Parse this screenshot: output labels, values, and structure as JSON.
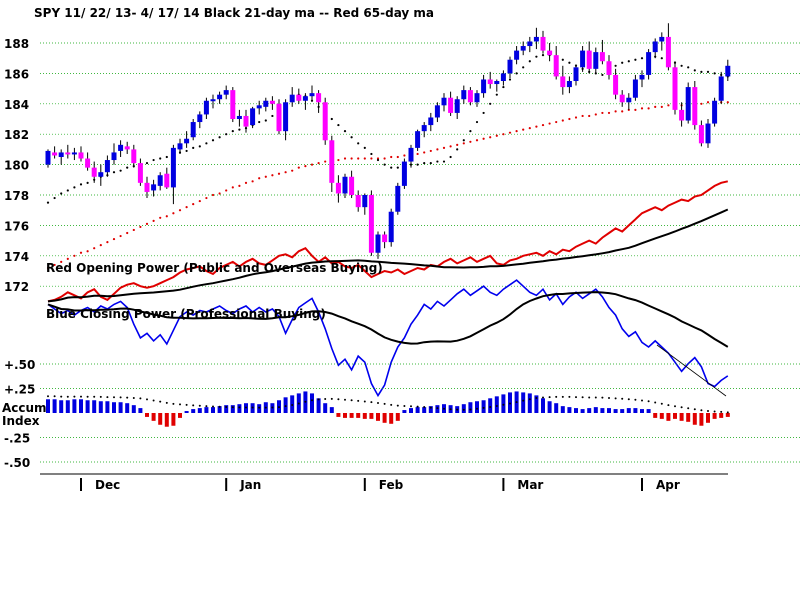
{
  "chart_data": {
    "type": "candlestick-with-indicators",
    "title": "SPY   11/ 22/ 13- 4/ 17/ 14    Black 21-day ma --   Red 65-day ma",
    "months": [
      "Dec",
      "Jan",
      "Feb",
      "Mar",
      "Apr"
    ],
    "price_axis": {
      "ticks": [
        172,
        174,
        176,
        178,
        180,
        182,
        184,
        186,
        188
      ],
      "ylim": [
        171.3,
        189.2
      ]
    },
    "accum_axis": {
      "ticks": [
        "+.50",
        "+.25",
        "-.25",
        "-.50"
      ],
      "ylim": [
        -0.55,
        0.55
      ],
      "label_lines": [
        "Accum",
        "Index"
      ]
    },
    "annotations": {
      "red_opening_power": "Red Opening Power (Public and Overseas Buying)",
      "blue_closing_power": "Blue Closing Power (Professional Buying)"
    },
    "candles_ohlc": [
      [
        180.0,
        181.0,
        179.8,
        180.9
      ],
      [
        180.8,
        181.2,
        180.4,
        180.6
      ],
      [
        180.5,
        181.0,
        180.0,
        180.8
      ],
      [
        180.8,
        181.3,
        180.4,
        180.7
      ],
      [
        180.7,
        181.1,
        180.3,
        180.8
      ],
      [
        180.8,
        181.2,
        180.2,
        180.4
      ],
      [
        180.4,
        180.8,
        179.6,
        179.8
      ],
      [
        179.8,
        180.2,
        178.8,
        179.2
      ],
      [
        179.2,
        180.0,
        178.6,
        179.5
      ],
      [
        179.5,
        180.6,
        179.2,
        180.3
      ],
      [
        180.3,
        181.4,
        180.0,
        180.8
      ],
      [
        180.9,
        181.6,
        180.5,
        181.3
      ],
      [
        181.2,
        181.5,
        180.7,
        181.0
      ],
      [
        181.0,
        181.3,
        179.8,
        180.1
      ],
      [
        180.1,
        180.4,
        178.6,
        178.8
      ],
      [
        178.8,
        179.2,
        177.8,
        178.2
      ],
      [
        178.3,
        179.0,
        177.9,
        178.7
      ],
      [
        178.6,
        179.5,
        178.3,
        179.3
      ],
      [
        179.4,
        179.8,
        178.4,
        178.5
      ],
      [
        178.5,
        181.3,
        177.4,
        181.1
      ],
      [
        181.0,
        181.7,
        180.7,
        181.4
      ],
      [
        181.4,
        182.2,
        181.1,
        181.7
      ],
      [
        181.8,
        183.0,
        181.6,
        182.8
      ],
      [
        182.8,
        183.5,
        182.4,
        183.3
      ],
      [
        183.3,
        184.4,
        183.0,
        184.2
      ],
      [
        184.2,
        184.6,
        183.7,
        184.3
      ],
      [
        184.3,
        184.8,
        184.0,
        184.6
      ],
      [
        184.6,
        185.2,
        184.3,
        184.9
      ],
      [
        184.9,
        185.1,
        182.8,
        183.0
      ],
      [
        183.0,
        183.6,
        182.5,
        183.2
      ],
      [
        183.2,
        183.6,
        182.1,
        182.5
      ],
      [
        182.6,
        183.8,
        182.4,
        183.7
      ],
      [
        183.7,
        184.2,
        183.3,
        183.9
      ],
      [
        183.8,
        184.4,
        183.5,
        184.2
      ],
      [
        184.2,
        184.5,
        183.6,
        184.0
      ],
      [
        184.0,
        184.3,
        182.0,
        182.2
      ],
      [
        182.2,
        184.3,
        181.6,
        184.1
      ],
      [
        184.1,
        185.1,
        183.8,
        184.6
      ],
      [
        184.6,
        185.0,
        184.0,
        184.2
      ],
      [
        184.2,
        184.7,
        183.6,
        184.5
      ],
      [
        184.5,
        185.2,
        184.2,
        184.7
      ],
      [
        184.7,
        184.9,
        183.4,
        184.1
      ],
      [
        184.1,
        184.4,
        181.3,
        181.6
      ],
      [
        181.6,
        181.9,
        178.2,
        178.8
      ],
      [
        178.8,
        179.3,
        177.5,
        178.1
      ],
      [
        178.1,
        179.4,
        177.8,
        179.2
      ],
      [
        179.2,
        179.6,
        177.8,
        178.0
      ],
      [
        178.0,
        178.3,
        176.9,
        177.2
      ],
      [
        177.2,
        178.1,
        176.7,
        178.0
      ],
      [
        178.0,
        178.3,
        174.0,
        174.2
      ],
      [
        174.2,
        175.6,
        173.8,
        175.4
      ],
      [
        175.4,
        175.6,
        174.5,
        174.9
      ],
      [
        174.9,
        177.1,
        174.6,
        176.9
      ],
      [
        176.9,
        178.8,
        176.7,
        178.6
      ],
      [
        178.6,
        180.4,
        178.4,
        180.2
      ],
      [
        180.2,
        181.3,
        179.8,
        181.1
      ],
      [
        181.1,
        182.3,
        180.9,
        182.2
      ],
      [
        182.2,
        182.8,
        181.8,
        182.6
      ],
      [
        182.6,
        183.4,
        182.2,
        183.1
      ],
      [
        183.1,
        184.1,
        182.8,
        183.9
      ],
      [
        183.9,
        184.7,
        183.5,
        184.4
      ],
      [
        184.4,
        184.8,
        183.2,
        183.4
      ],
      [
        183.4,
        184.5,
        183.0,
        184.3
      ],
      [
        184.3,
        185.2,
        184.0,
        184.9
      ],
      [
        184.9,
        185.1,
        183.9,
        184.1
      ],
      [
        184.1,
        184.9,
        183.8,
        184.7
      ],
      [
        184.7,
        185.9,
        184.4,
        185.6
      ],
      [
        185.6,
        186.1,
        185.0,
        185.3
      ],
      [
        185.3,
        185.6,
        184.8,
        185.5
      ],
      [
        185.5,
        186.2,
        185.2,
        186.0
      ],
      [
        186.0,
        187.1,
        185.7,
        186.9
      ],
      [
        186.9,
        187.8,
        186.6,
        187.5
      ],
      [
        187.5,
        188.1,
        187.2,
        187.8
      ],
      [
        187.8,
        188.4,
        187.4,
        188.1
      ],
      [
        188.1,
        189.0,
        187.6,
        188.4
      ],
      [
        188.4,
        188.8,
        187.3,
        187.5
      ],
      [
        187.5,
        188.0,
        186.8,
        187.2
      ],
      [
        187.2,
        187.8,
        185.6,
        185.8
      ],
      [
        185.8,
        186.5,
        184.6,
        185.1
      ],
      [
        185.1,
        185.8,
        184.7,
        185.5
      ],
      [
        185.5,
        186.6,
        185.2,
        186.4
      ],
      [
        186.4,
        187.8,
        186.1,
        187.5
      ],
      [
        187.5,
        188.1,
        186.0,
        186.3
      ],
      [
        186.3,
        187.7,
        186.0,
        187.4
      ],
      [
        187.4,
        188.2,
        186.6,
        186.8
      ],
      [
        186.8,
        187.2,
        185.6,
        185.9
      ],
      [
        185.9,
        186.3,
        184.3,
        184.6
      ],
      [
        184.6,
        184.9,
        183.8,
        184.1
      ],
      [
        184.1,
        184.7,
        183.6,
        184.4
      ],
      [
        184.4,
        185.9,
        184.2,
        185.6
      ],
      [
        185.6,
        186.2,
        185.1,
        185.9
      ],
      [
        185.9,
        187.6,
        185.6,
        187.4
      ],
      [
        187.4,
        188.3,
        187.0,
        188.1
      ],
      [
        188.1,
        188.7,
        187.5,
        188.4
      ],
      [
        188.4,
        189.3,
        186.2,
        186.4
      ],
      [
        186.4,
        186.8,
        183.3,
        183.6
      ],
      [
        183.6,
        184.1,
        182.5,
        182.9
      ],
      [
        182.9,
        185.4,
        182.7,
        185.1
      ],
      [
        185.1,
        185.5,
        182.3,
        182.6
      ],
      [
        182.6,
        182.9,
        181.2,
        181.4
      ],
      [
        181.4,
        183.0,
        181.1,
        182.7
      ],
      [
        182.7,
        184.4,
        182.5,
        184.2
      ],
      [
        184.2,
        186.1,
        184.0,
        185.8
      ],
      [
        185.8,
        186.9,
        185.5,
        186.5
      ]
    ],
    "series": [
      {
        "name": "Black 21-day ma",
        "values": [
          177.5,
          177.8,
          178.1,
          178.3,
          178.5,
          178.7,
          178.8,
          179.0,
          179.2,
          179.3,
          179.5,
          179.6,
          179.8,
          179.9,
          180.0,
          180.1,
          180.3,
          180.4,
          180.5,
          180.6,
          180.8,
          180.9,
          181.1,
          181.2,
          181.4,
          181.6,
          181.8,
          182.0,
          182.2,
          182.3,
          182.4,
          182.6,
          182.8,
          182.9,
          183.2,
          183.5,
          183.9,
          184.3,
          184.6,
          184.5,
          184.2,
          183.8,
          183.4,
          183.0,
          182.6,
          182.2,
          181.8,
          181.4,
          181.1,
          180.7,
          180.3,
          180.0,
          179.8,
          179.8,
          179.9,
          180.0,
          180.0,
          180.1,
          180.1,
          180.2,
          180.2,
          180.5,
          181.0,
          181.6,
          182.2,
          182.8,
          183.4,
          184.0,
          184.6,
          185.1,
          185.6,
          186.0,
          186.4,
          186.8,
          187.1,
          187.2,
          187.2,
          187.1,
          186.9,
          186.7,
          186.5,
          186.3,
          186.1,
          186.0,
          185.9,
          186.2,
          186.5,
          186.7,
          186.8,
          186.9,
          187.0,
          187.1,
          187.1,
          187.0,
          186.9,
          186.7,
          186.5,
          186.4,
          186.2,
          186.1,
          186.1,
          186.0,
          185.9,
          185.8
        ]
      },
      {
        "name": "Red 65-day ma",
        "values": [
          173.2,
          173.4,
          173.6,
          173.8,
          174.0,
          174.2,
          174.3,
          174.5,
          174.7,
          174.9,
          175.1,
          175.3,
          175.5,
          175.7,
          175.9,
          176.1,
          176.3,
          176.5,
          176.6,
          176.8,
          177.0,
          177.2,
          177.4,
          177.6,
          177.8,
          178.0,
          178.1,
          178.3,
          178.5,
          178.6,
          178.8,
          178.9,
          179.1,
          179.2,
          179.3,
          179.4,
          179.5,
          179.6,
          179.8,
          179.9,
          180.0,
          180.1,
          180.2,
          180.3,
          180.3,
          180.4,
          180.4,
          180.4,
          180.4,
          180.4,
          180.4,
          180.4,
          180.5,
          180.5,
          180.6,
          180.6,
          180.7,
          180.8,
          180.9,
          181.0,
          181.1,
          181.2,
          181.3,
          181.4,
          181.5,
          181.6,
          181.7,
          181.8,
          181.9,
          182.0,
          182.1,
          182.2,
          182.3,
          182.4,
          182.5,
          182.6,
          182.7,
          182.8,
          182.9,
          183.0,
          183.1,
          183.2,
          183.2,
          183.3,
          183.4,
          183.4,
          183.5,
          183.5,
          183.6,
          183.6,
          183.7,
          183.7,
          183.8,
          183.8,
          183.9,
          183.9,
          183.9,
          184.0,
          184.0,
          184.0,
          184.1,
          184.1,
          184.1,
          184.1
        ]
      }
    ],
    "indicators": {
      "red_opening_power": [
        171.0,
        171.1,
        171.3,
        171.6,
        171.4,
        171.2,
        171.6,
        171.8,
        171.3,
        171.1,
        171.5,
        171.9,
        172.1,
        172.2,
        172.0,
        171.9,
        172.0,
        172.2,
        172.4,
        172.6,
        172.9,
        173.1,
        173.2,
        173.3,
        173.0,
        172.8,
        173.2,
        173.4,
        173.6,
        173.3,
        173.6,
        173.8,
        173.5,
        173.4,
        173.7,
        174.0,
        174.1,
        173.9,
        174.3,
        174.5,
        174.0,
        173.6,
        173.9,
        173.5,
        173.6,
        173.3,
        173.2,
        173.4,
        173.0,
        172.6,
        172.8,
        173.0,
        172.9,
        173.1,
        172.8,
        173.0,
        173.2,
        173.1,
        173.4,
        173.3,
        173.6,
        173.8,
        173.5,
        173.7,
        173.9,
        173.6,
        173.8,
        174.0,
        173.5,
        173.4,
        173.7,
        173.8,
        174.0,
        174.1,
        174.2,
        174.0,
        174.3,
        174.1,
        174.4,
        174.3,
        174.6,
        174.8,
        175.0,
        174.8,
        175.2,
        175.5,
        175.8,
        175.6,
        176.0,
        176.4,
        176.8,
        177.0,
        177.2,
        177.0,
        177.3,
        177.5,
        177.7,
        177.6,
        177.9,
        178.0,
        178.3,
        178.6,
        178.8,
        178.9
      ],
      "blue_closing_power": [
        170.8,
        170.5,
        170.2,
        170.4,
        170.1,
        170.4,
        170.6,
        170.3,
        170.7,
        170.5,
        170.8,
        171.0,
        170.6,
        169.5,
        168.6,
        168.9,
        168.4,
        168.8,
        168.2,
        169.1,
        170.0,
        170.3,
        170.1,
        170.4,
        170.3,
        170.5,
        170.7,
        170.4,
        170.2,
        170.5,
        170.7,
        170.3,
        170.6,
        170.3,
        170.5,
        170.0,
        168.9,
        169.8,
        170.6,
        170.9,
        171.2,
        170.3,
        169.2,
        167.9,
        166.8,
        167.2,
        166.5,
        167.4,
        167.0,
        165.6,
        164.8,
        165.5,
        167.0,
        168.0,
        168.6,
        169.5,
        170.1,
        170.8,
        170.5,
        171.0,
        170.7,
        171.1,
        171.5,
        171.8,
        171.4,
        171.7,
        172.0,
        171.6,
        171.4,
        171.8,
        172.1,
        172.4,
        172.0,
        171.6,
        171.4,
        171.8,
        171.1,
        171.5,
        170.8,
        171.3,
        171.6,
        171.2,
        171.5,
        171.8,
        171.3,
        170.6,
        170.1,
        169.2,
        168.7,
        169.0,
        168.3,
        168.0,
        168.4,
        168.0,
        167.6,
        167.0,
        166.4,
        166.9,
        167.3,
        166.7,
        165.6,
        165.4,
        165.8,
        166.1
      ],
      "accum_index": [
        0.14,
        0.14,
        0.13,
        0.13,
        0.14,
        0.14,
        0.13,
        0.13,
        0.12,
        0.12,
        0.11,
        0.11,
        0.1,
        0.08,
        0.05,
        -0.04,
        -0.08,
        -0.12,
        -0.14,
        -0.13,
        -0.05,
        0.02,
        0.04,
        0.05,
        0.06,
        0.06,
        0.07,
        0.08,
        0.08,
        0.09,
        0.1,
        0.1,
        0.09,
        0.11,
        0.1,
        0.13,
        0.16,
        0.18,
        0.2,
        0.22,
        0.2,
        0.15,
        0.1,
        0.06,
        -0.04,
        -0.05,
        -0.05,
        -0.05,
        -0.06,
        -0.06,
        -0.08,
        -0.1,
        -0.11,
        -0.08,
        0.03,
        0.05,
        0.06,
        0.06,
        0.07,
        0.08,
        0.09,
        0.08,
        0.07,
        0.09,
        0.11,
        0.12,
        0.13,
        0.15,
        0.17,
        0.19,
        0.21,
        0.22,
        0.21,
        0.2,
        0.18,
        0.15,
        0.12,
        0.1,
        0.07,
        0.06,
        0.05,
        0.04,
        0.05,
        0.06,
        0.05,
        0.05,
        0.04,
        0.04,
        0.05,
        0.05,
        0.04,
        0.04,
        -0.05,
        -0.06,
        -0.08,
        -0.06,
        -0.08,
        -0.09,
        -0.12,
        -0.13,
        -0.1,
        -0.06,
        -0.05,
        -0.04
      ]
    }
  }
}
